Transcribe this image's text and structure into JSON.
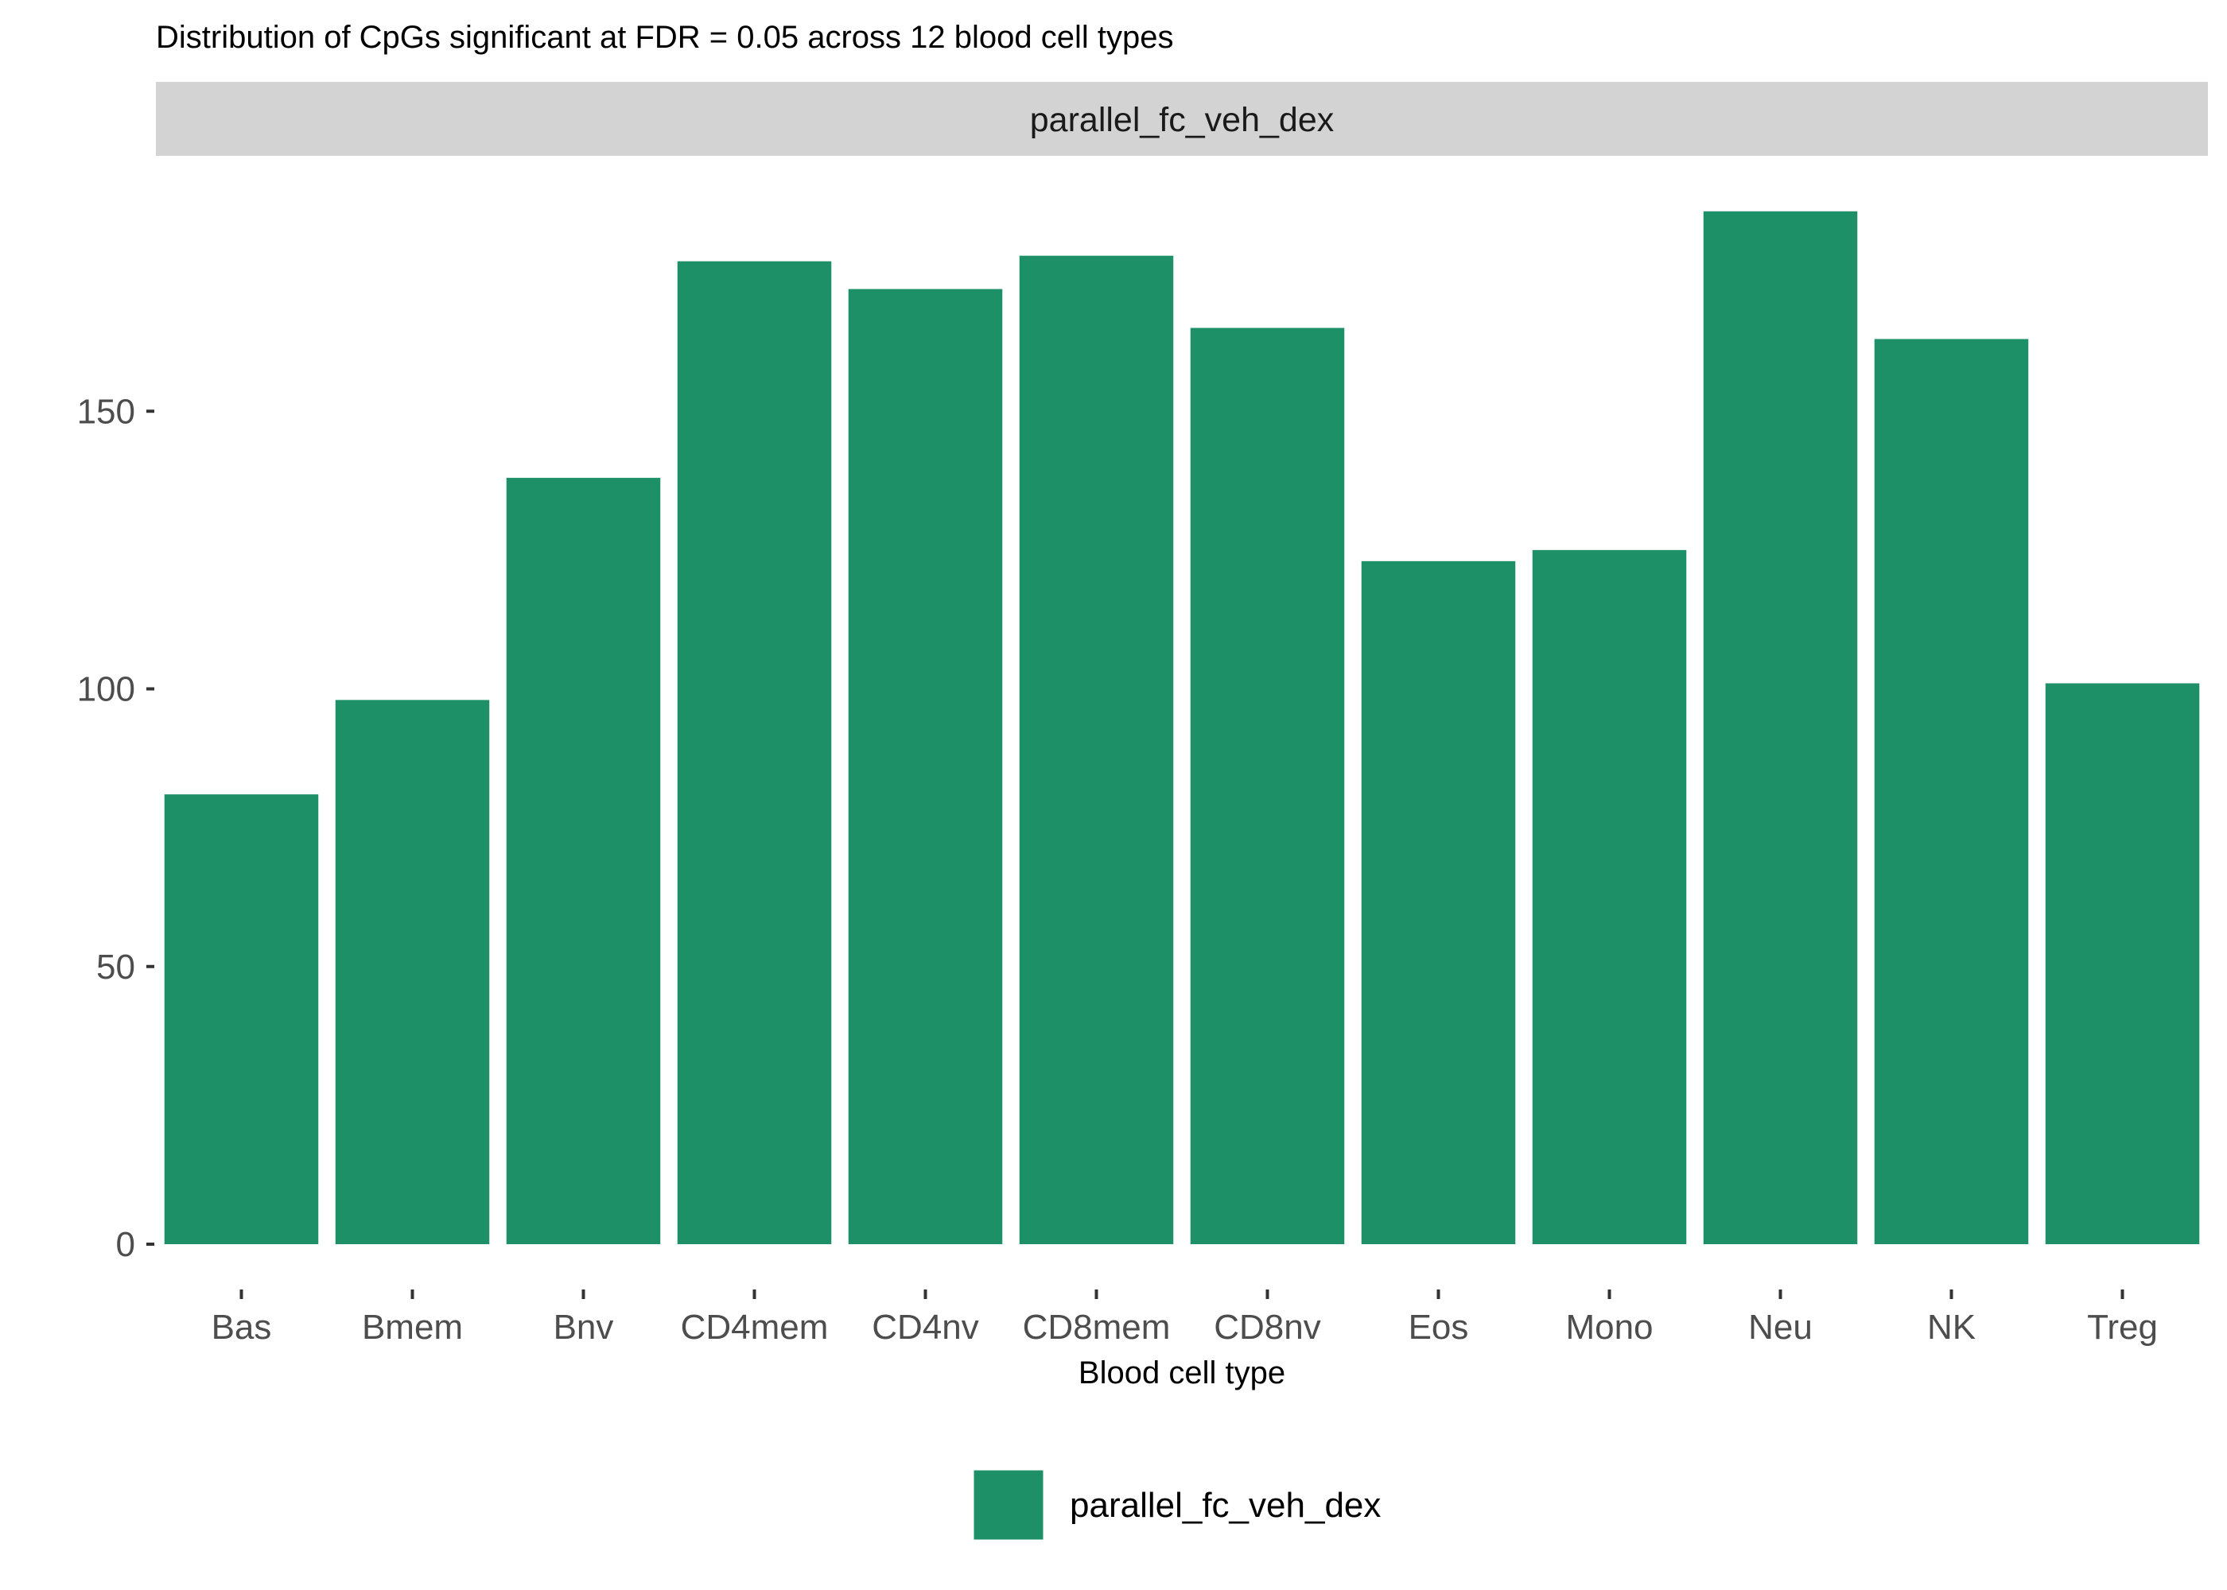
{
  "chart_data": {
    "type": "bar",
    "title": "Distribution of CpGs significant at FDR = 0.05 across 12 blood cell types",
    "facet_label": "parallel_fc_veh_dex",
    "xlabel": "Blood cell type",
    "ylabel": "",
    "categories": [
      "Bas",
      "Bmem",
      "Bnv",
      "CD4mem",
      "CD4nv",
      "CD8mem",
      "CD8nv",
      "Eos",
      "Mono",
      "Neu",
      "NK",
      "Treg"
    ],
    "series": [
      {
        "name": "parallel_fc_veh_dex",
        "color": "#1e9068",
        "values": [
          81,
          98,
          138,
          177,
          172,
          178,
          165,
          123,
          125,
          186,
          163,
          101
        ]
      }
    ],
    "ylim": [
      0,
      190
    ],
    "yticks": [
      0,
      50,
      100,
      150
    ],
    "legend_position": "bottom",
    "grid": false,
    "strip_color": "#d3d3d3"
  }
}
